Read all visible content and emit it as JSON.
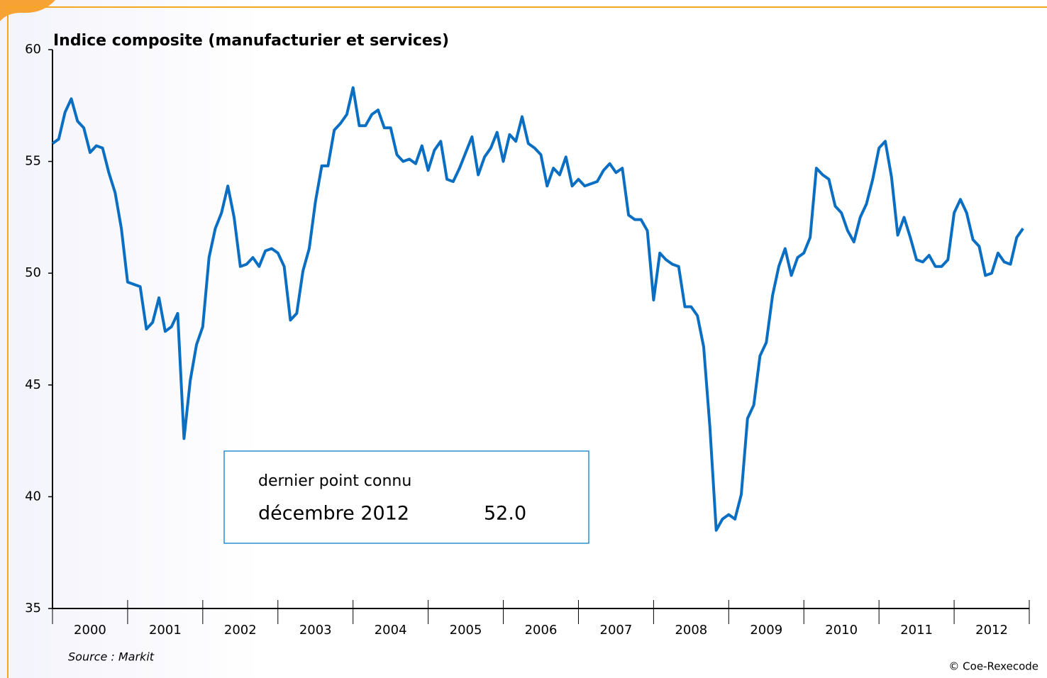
{
  "chart_data": {
    "type": "line",
    "title": "Indice composite (manufacturier et services)",
    "categories": [
      "2000",
      "2001",
      "2002",
      "2003",
      "2004",
      "2005",
      "2006",
      "2007",
      "2008",
      "2009",
      "2010",
      "2011",
      "2012"
    ],
    "series": [
      {
        "color": "#0a6fc2",
        "values": [
          [
            55.8,
            56.0,
            57.2,
            57.8,
            56.8,
            56.5,
            55.4,
            55.7,
            55.6,
            54.5,
            53.6,
            52.0
          ],
          [
            49.6,
            49.5,
            49.4,
            47.5,
            47.8,
            48.9,
            47.4,
            47.6,
            48.2,
            42.6,
            45.2,
            46.8
          ],
          [
            47.6,
            50.7,
            52.0,
            52.7,
            53.9,
            52.5,
            50.3,
            50.4,
            50.7,
            50.3,
            51.0,
            51.1
          ],
          [
            50.9,
            50.3,
            47.9,
            48.2,
            50.1,
            51.1,
            53.2,
            54.8,
            54.8,
            56.4,
            56.7,
            57.1
          ],
          [
            58.3,
            56.6,
            56.6,
            57.1,
            57.3,
            56.5,
            56.5,
            55.3,
            55.0,
            55.1,
            54.9,
            55.7
          ],
          [
            54.6,
            55.5,
            55.9,
            54.2,
            54.1,
            54.7,
            55.4,
            56.1,
            54.4,
            55.2,
            55.6,
            56.3
          ],
          [
            55.0,
            56.2,
            55.9,
            57.0,
            55.8,
            55.6,
            55.3,
            53.9,
            54.7,
            54.4,
            55.2,
            53.9
          ],
          [
            54.2,
            53.9,
            54.0,
            54.1,
            54.6,
            54.9,
            54.5,
            54.7,
            52.6,
            52.4,
            52.4,
            51.9
          ],
          [
            48.8,
            50.9,
            50.6,
            50.4,
            50.3,
            48.5,
            48.5,
            48.1,
            46.7,
            43.1,
            38.5,
            39.0
          ],
          [
            39.2,
            39.0,
            40.1,
            43.5,
            44.1,
            46.3,
            46.9,
            49.0,
            50.3,
            51.1,
            49.9,
            50.7
          ],
          [
            50.9,
            51.6,
            54.7,
            54.4,
            54.2,
            53.0,
            52.7,
            51.9,
            51.4,
            52.5,
            53.1,
            54.2
          ],
          [
            55.6,
            55.9,
            54.3,
            51.7,
            52.5,
            51.6,
            50.6,
            50.5,
            50.8,
            50.3,
            50.3,
            50.6
          ],
          [
            52.7,
            53.3,
            52.7,
            51.5,
            51.2,
            49.9,
            50.0,
            50.9,
            50.5,
            50.4,
            51.6,
            52.0
          ]
        ]
      }
    ],
    "ylim": [
      35,
      60
    ],
    "yticks": [
      35,
      40,
      45,
      50,
      55,
      60
    ],
    "annotation": {
      "text": "dernier point connu",
      "date": "décembre 2012",
      "value": "52.0"
    },
    "source": "Source : Markit",
    "credit": "© Coe-Rexecode"
  }
}
